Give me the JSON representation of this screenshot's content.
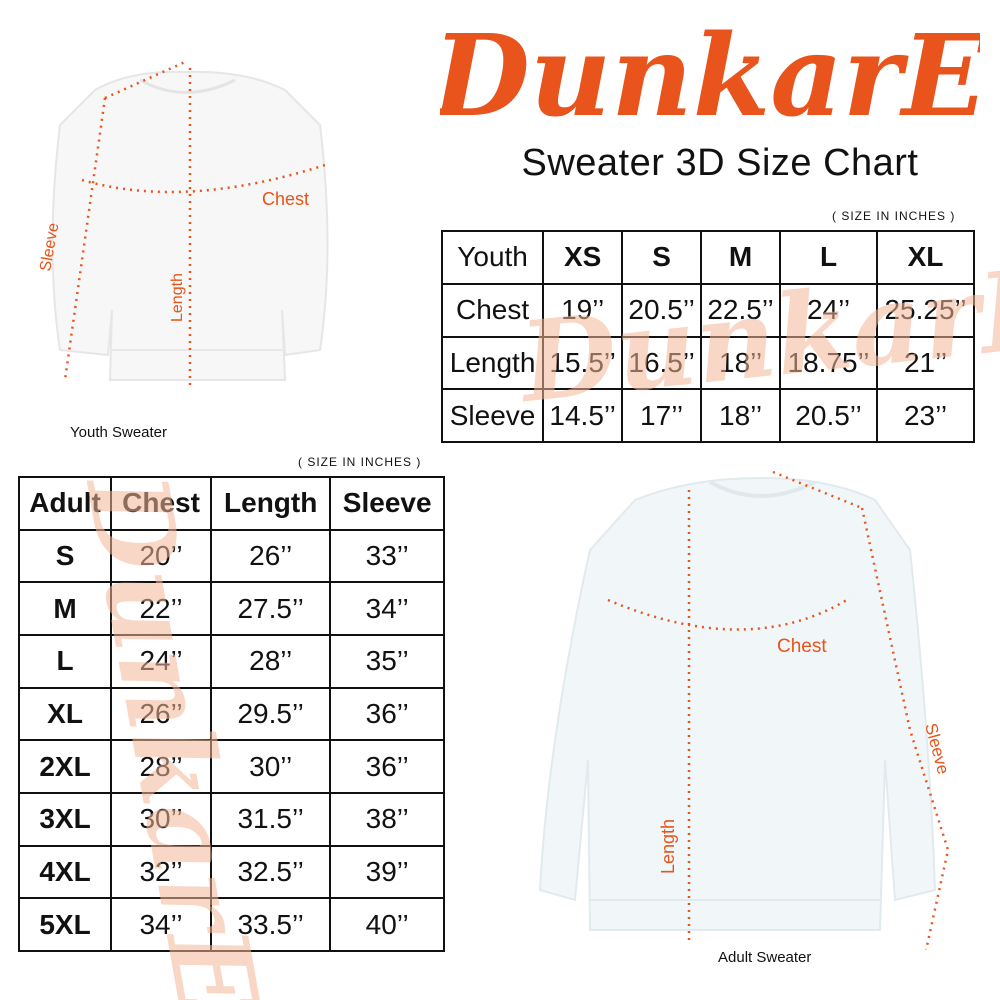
{
  "brand": {
    "logo_text": "DunkarE",
    "accent": "#e8541c"
  },
  "title": "Sweater 3D Size Chart",
  "youth": {
    "unit_note": "( SIZE IN INCHES )",
    "caption": "Youth Sweater",
    "labels": {
      "chest": "Chest",
      "length": "Length",
      "sleeve": "Sleeve"
    },
    "headers": [
      "Youth",
      "XS",
      "S",
      "M",
      "L",
      "XL"
    ],
    "rows": [
      [
        "Chest",
        "19’’",
        "20.5’’",
        "22.5’’",
        "24’’",
        "25.25’’"
      ],
      [
        "Length",
        "15.5’’",
        "16.5’’",
        "18’’",
        "18.75’’",
        "21’’"
      ],
      [
        "Sleeve",
        "14.5’’",
        "17’’",
        "18’’",
        "20.5’’",
        "23’’"
      ]
    ]
  },
  "adult": {
    "unit_note": "( SIZE IN INCHES )",
    "caption": "Adult Sweater",
    "labels": {
      "chest": "Chest",
      "length": "Length",
      "sleeve": "Sleeve"
    },
    "headers": [
      "Adult",
      "Chest",
      "Length",
      "Sleeve"
    ],
    "rows": [
      [
        "S",
        "20’’",
        "26’’",
        "33’’"
      ],
      [
        "M",
        "22’’",
        "27.5’’",
        "34’’"
      ],
      [
        "L",
        "24’’",
        "28’’",
        "35’’"
      ],
      [
        "XL",
        "26’’",
        "29.5’’",
        "36’’"
      ],
      [
        "2XL",
        "28’’",
        "30’’",
        "36’’"
      ],
      [
        "3XL",
        "30’’",
        "31.5’’",
        "38’’"
      ],
      [
        "4XL",
        "32’’",
        "32.5’’",
        "39’’"
      ],
      [
        "5XL",
        "34’’",
        "33.5’’",
        "40’’"
      ]
    ]
  }
}
